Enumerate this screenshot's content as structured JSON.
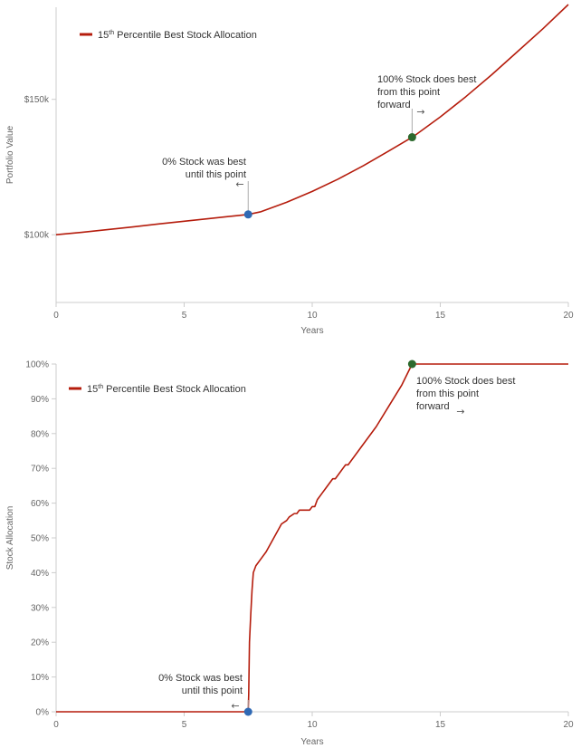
{
  "colors": {
    "series": "#b51c0c",
    "point_start": "#2f69b4",
    "point_end": "#2d6a2e",
    "axis": "#cccccc",
    "text": "#333333",
    "tick_text": "#666666"
  },
  "chart_data": [
    {
      "type": "line",
      "xlabel": "Years",
      "ylabel": "Portfolio Value",
      "xlim": [
        0,
        20
      ],
      "ylim": [
        75000,
        184000
      ],
      "x_ticks": [
        0,
        5,
        10,
        15,
        20
      ],
      "x_tick_labels": [
        "0",
        "5",
        "10",
        "15",
        "20"
      ],
      "y_ticks": [
        100000,
        150000
      ],
      "y_tick_labels": [
        "$100k",
        "$150k"
      ],
      "legend": {
        "label_main": "15",
        "label_sup": "th",
        "label_rest": " Percentile Best Stock Allocation",
        "position": "top-left"
      },
      "series": [
        {
          "x": [
            0,
            1,
            2,
            3,
            4,
            5,
            6,
            7,
            7.5,
            8,
            9,
            10,
            11,
            12,
            13,
            13.9,
            14,
            15,
            16,
            17,
            18,
            19,
            20
          ],
          "y": [
            100000,
            100900,
            101900,
            102900,
            104000,
            105000,
            106000,
            107000,
            107500,
            108500,
            112000,
            116000,
            120500,
            125500,
            131000,
            136000,
            136600,
            143500,
            151000,
            159000,
            167500,
            176000,
            185000
          ]
        }
      ],
      "points": [
        {
          "x": 7.5,
          "y": 107500,
          "role": "start"
        },
        {
          "x": 13.9,
          "y": 136000,
          "role": "end"
        }
      ],
      "annotations": [
        {
          "lines": [
            "0% Stock was best",
            "until this point"
          ],
          "arrow": "←",
          "x": 7.5
        },
        {
          "lines": [
            "100% Stock does best",
            "from this point",
            "forward"
          ],
          "arrow": "→",
          "x": 13.9
        }
      ]
    },
    {
      "type": "line",
      "xlabel": "Years",
      "ylabel": "Stock Allocation",
      "xlim": [
        0,
        20
      ],
      "ylim": [
        0,
        100
      ],
      "x_ticks": [
        0,
        5,
        10,
        15,
        20
      ],
      "x_tick_labels": [
        "0",
        "5",
        "10",
        "15",
        "20"
      ],
      "y_ticks": [
        0,
        10,
        20,
        30,
        40,
        50,
        60,
        70,
        80,
        90,
        100
      ],
      "y_tick_labels": [
        "0%",
        "10%",
        "20%",
        "30%",
        "40%",
        "50%",
        "60%",
        "70%",
        "80%",
        "90%",
        "100%"
      ],
      "legend": {
        "label_main": "15",
        "label_sup": "th",
        "label_rest": " Percentile Best Stock Allocation",
        "position": "top-left"
      },
      "series": [
        {
          "x": [
            0,
            7.45,
            7.5,
            7.52,
            7.55,
            7.6,
            7.65,
            7.7,
            7.8,
            8.0,
            8.2,
            8.5,
            8.8,
            9.0,
            9.1,
            9.3,
            9.4,
            9.5,
            9.6,
            9.9,
            10.0,
            10.1,
            10.2,
            10.4,
            10.5,
            10.8,
            10.9,
            11.3,
            11.4,
            11.8,
            11.9,
            12.5,
            13.0,
            13.5,
            13.9,
            20
          ],
          "y": [
            0,
            0,
            0,
            5,
            20,
            28,
            35,
            40,
            42,
            44,
            46,
            50,
            54,
            55,
            56,
            57,
            57,
            58,
            58,
            58,
            59,
            59,
            61,
            63,
            64,
            67,
            67,
            71,
            71,
            75,
            76,
            82,
            88,
            94,
            100,
            100
          ]
        }
      ],
      "points": [
        {
          "x": 7.5,
          "y": 0,
          "role": "start"
        },
        {
          "x": 13.9,
          "y": 100,
          "role": "end"
        }
      ],
      "annotations": [
        {
          "lines": [
            "0% Stock was best",
            "until this point"
          ],
          "arrow": "←",
          "x": 7.5
        },
        {
          "lines": [
            "100% Stock does best",
            "from this point",
            "forward"
          ],
          "arrow": "→",
          "x": 13.9
        }
      ]
    }
  ]
}
